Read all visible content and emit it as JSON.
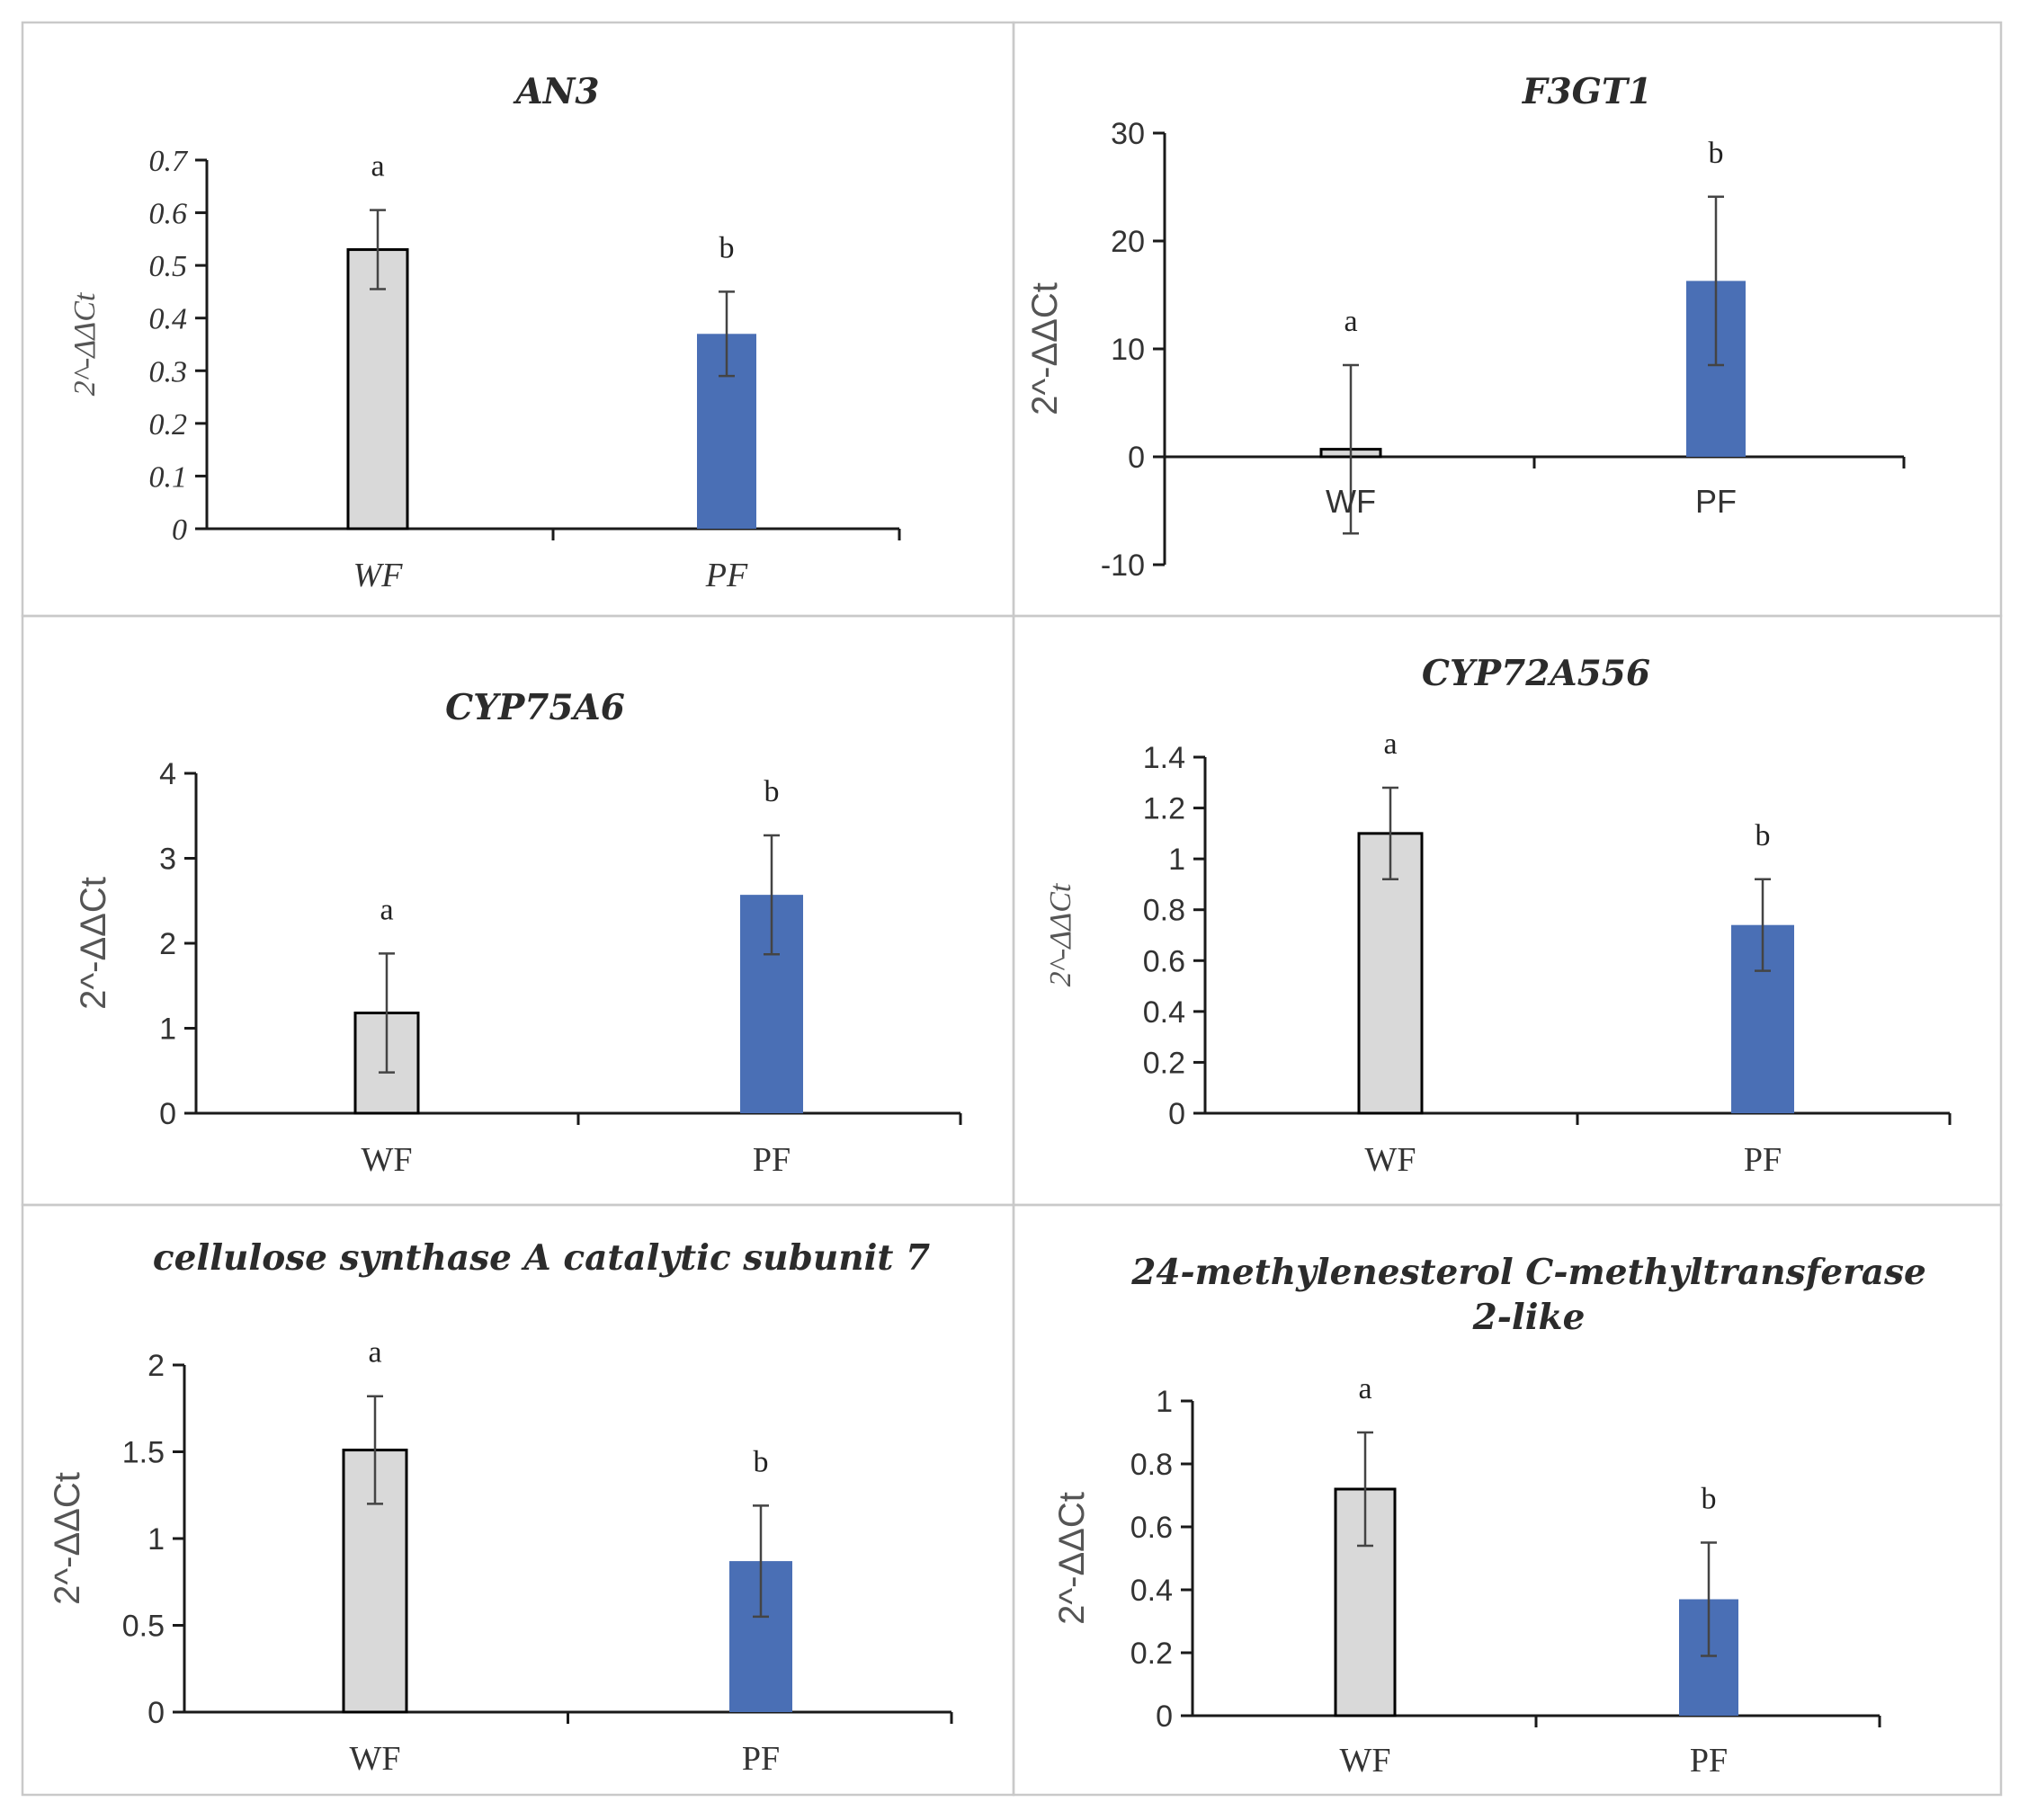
{
  "colors": {
    "control_bar": "#d9d9d9",
    "treatment_bar": "#4a6fb5",
    "border": "#c9c9c9"
  },
  "chart_data": [
    {
      "type": "bar",
      "title_lines": [
        "AN3"
      ],
      "ylabel": "2^-ΔΔCt",
      "categories": [
        "WF",
        "PF"
      ],
      "values": [
        0.53,
        0.37
      ],
      "errors": [
        0.075,
        0.08
      ],
      "significance": [
        "a",
        "b"
      ],
      "ylim": [
        0,
        0.7
      ],
      "yticks": [
        0,
        0.1,
        0.2,
        0.3,
        0.4,
        0.5,
        0.6,
        0.7
      ],
      "ytick_labels": [
        "0",
        "0.1",
        "0.2",
        "0.3",
        "0.4",
        "0.5",
        "0.6",
        "0.7"
      ],
      "grid": false
    },
    {
      "type": "bar",
      "title_lines": [
        "F3GT1"
      ],
      "ylabel": "2^-ΔΔCt",
      "categories": [
        "WF",
        "PF"
      ],
      "values": [
        0.7,
        16.3
      ],
      "errors": [
        7.8,
        7.8
      ],
      "significance": [
        "a",
        "b"
      ],
      "ylim": [
        -10,
        30
      ],
      "yticks": [
        -10,
        0,
        10,
        20,
        30
      ],
      "ytick_labels": [
        "-10",
        "0",
        "10",
        "20",
        "30"
      ],
      "grid": false
    },
    {
      "type": "bar",
      "title_lines": [
        "CYP75A6"
      ],
      "ylabel": "2^-ΔΔCt",
      "categories": [
        "WF",
        "PF"
      ],
      "values": [
        1.18,
        2.57
      ],
      "errors": [
        0.7,
        0.7
      ],
      "significance": [
        "a",
        "b"
      ],
      "ylim": [
        0,
        4
      ],
      "yticks": [
        0,
        1,
        2,
        3,
        4
      ],
      "ytick_labels": [
        "0",
        "1",
        "2",
        "3",
        "4"
      ],
      "grid": false
    },
    {
      "type": "bar",
      "title_lines": [
        "CYP72A556"
      ],
      "ylabel": "2^-ΔΔCt",
      "categories": [
        "WF",
        "PF"
      ],
      "values": [
        1.1,
        0.74
      ],
      "errors": [
        0.18,
        0.18
      ],
      "significance": [
        "a",
        "b"
      ],
      "ylim": [
        0,
        1.4
      ],
      "yticks": [
        0,
        0.2,
        0.4,
        0.6,
        0.8,
        1.0,
        1.2,
        1.4
      ],
      "ytick_labels": [
        "0",
        "0.2",
        "0.4",
        "0.6",
        "0.8",
        "1",
        "1.2",
        "1.4"
      ],
      "grid": false
    },
    {
      "type": "bar",
      "title_lines": [
        "cellulose synthase A catalytic subunit 7"
      ],
      "ylabel": "2^-ΔΔCt",
      "categories": [
        "WF",
        "PF"
      ],
      "values": [
        1.51,
        0.87
      ],
      "errors": [
        0.31,
        0.32
      ],
      "significance": [
        "a",
        "b"
      ],
      "ylim": [
        0,
        2
      ],
      "yticks": [
        0,
        0.5,
        1,
        1.5,
        2
      ],
      "ytick_labels": [
        "0",
        "0.5",
        "1",
        "1.5",
        "2"
      ],
      "grid": false
    },
    {
      "type": "bar",
      "title_lines": [
        "24-methylenesterol C-methyltransferase",
        "2-like"
      ],
      "ylabel": "2^-ΔΔCt",
      "categories": [
        "WF",
        "PF"
      ],
      "values": [
        0.72,
        0.37
      ],
      "errors": [
        0.18,
        0.18
      ],
      "significance": [
        "a",
        "b"
      ],
      "ylim": [
        0,
        1
      ],
      "yticks": [
        0,
        0.2,
        0.4,
        0.6,
        0.8,
        1.0
      ],
      "ytick_labels": [
        "0",
        "0.2",
        "0.4",
        "0.6",
        "0.8",
        "1"
      ],
      "grid": false
    }
  ]
}
